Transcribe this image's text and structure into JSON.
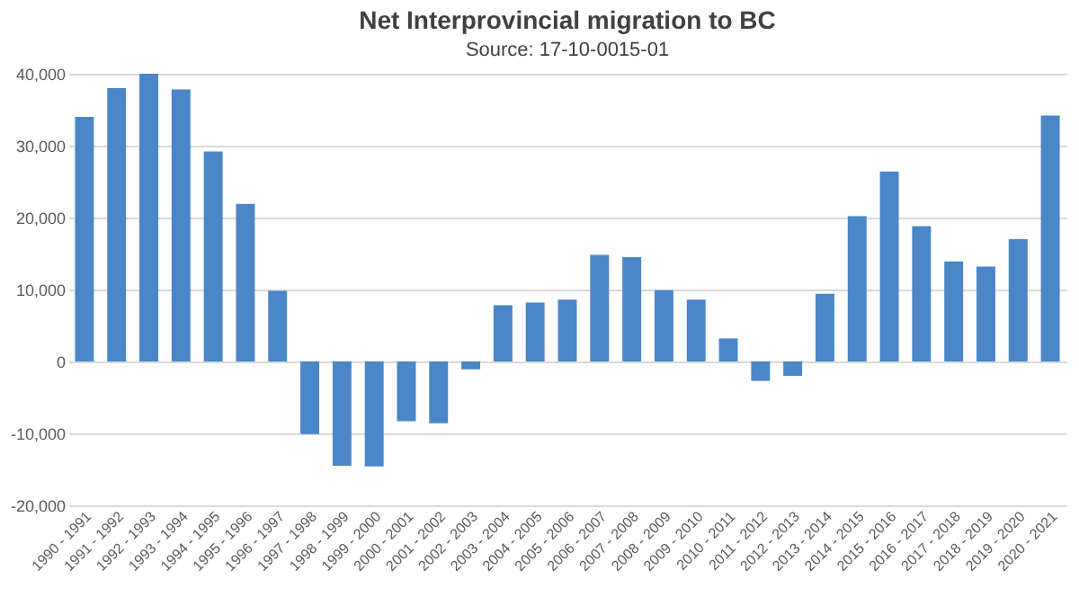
{
  "chart_data": {
    "type": "bar",
    "title": "Net Interprovincial migration to BC",
    "subtitle": "Source: 17-10-0015-01",
    "categories": [
      "1990 - 1991",
      "1991 - 1992",
      "1992 - 1993",
      "1993 - 1994",
      "1994 - 1995",
      "1995 - 1996",
      "1996 - 1997",
      "1997 - 1998",
      "1998 - 1999",
      "1999 - 2000",
      "2000 - 2001",
      "2001 - 2002",
      "2002 - 2003",
      "2003 - 2004",
      "2004 - 2005",
      "2005 - 2006",
      "2006 - 2007",
      "2007 - 2008",
      "2008 - 2009",
      "2009 - 2010",
      "2010 - 2011",
      "2011 - 2012",
      "2012 - 2013",
      "2013 - 2014",
      "2014 - 2015",
      "2015 - 2016",
      "2016 - 2017",
      "2017 - 2018",
      "2018 - 2019",
      "2019 - 2020",
      "2020 - 2021"
    ],
    "values": [
      34000,
      38000,
      40000,
      37800,
      29200,
      21900,
      9800,
      -10100,
      -14500,
      -14600,
      -8300,
      -8600,
      -1100,
      7800,
      8200,
      8600,
      14800,
      14500,
      9900,
      8600,
      3200,
      -2700,
      -2000,
      9400,
      20200,
      26400,
      18800,
      13900,
      13200,
      17000,
      34200
    ],
    "color": "#4a86c8",
    "ylim": [
      -20000,
      40000
    ],
    "yticks": [
      {
        "value": -20000,
        "label": "-20,000"
      },
      {
        "value": -10000,
        "label": "-10,000"
      },
      {
        "value": 0,
        "label": "0"
      },
      {
        "value": 10000,
        "label": "10,000"
      },
      {
        "value": 20000,
        "label": "20,000"
      },
      {
        "value": 30000,
        "label": "30,000"
      },
      {
        "value": 40000,
        "label": "40,000"
      }
    ],
    "grid": "y"
  }
}
